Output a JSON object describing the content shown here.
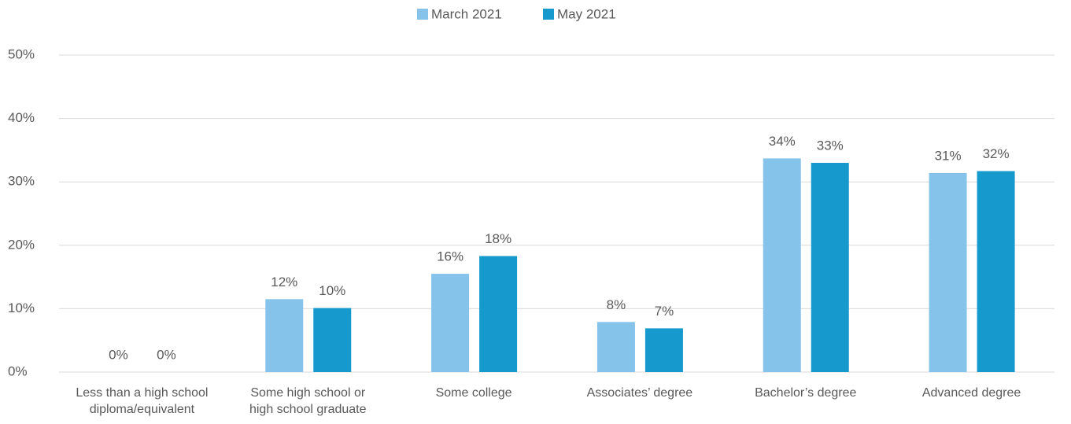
{
  "chart_data": {
    "type": "bar",
    "categories": [
      "Less than a high school diploma/equivalent",
      "Some high school or high school graduate",
      "Some college",
      "Associates’ degree",
      "Bachelor’s degree",
      "Advanced degree"
    ],
    "series": [
      {
        "name": "March 2021",
        "color": "#85c3ea",
        "values": [
          0,
          11.5,
          15.5,
          7.9,
          33.7,
          31.4
        ],
        "value_labels": [
          "0%",
          "12%",
          "16%",
          "8%",
          "34%",
          "31%"
        ]
      },
      {
        "name": "May 2021",
        "color": "#1699cc",
        "values": [
          0,
          10.1,
          18.3,
          6.9,
          33.0,
          31.7
        ],
        "value_labels": [
          "0%",
          "10%",
          "18%",
          "7%",
          "33%",
          "32%"
        ]
      }
    ],
    "ylim": [
      0,
      50
    ],
    "yticks": [
      {
        "value": 0,
        "label": "0%"
      },
      {
        "value": 10,
        "label": "10%"
      },
      {
        "value": 20,
        "label": "20%"
      },
      {
        "value": 30,
        "label": "30%"
      },
      {
        "value": 40,
        "label": "40%"
      },
      {
        "value": 50,
        "label": "50%"
      }
    ],
    "grid": true,
    "legend": "top"
  }
}
